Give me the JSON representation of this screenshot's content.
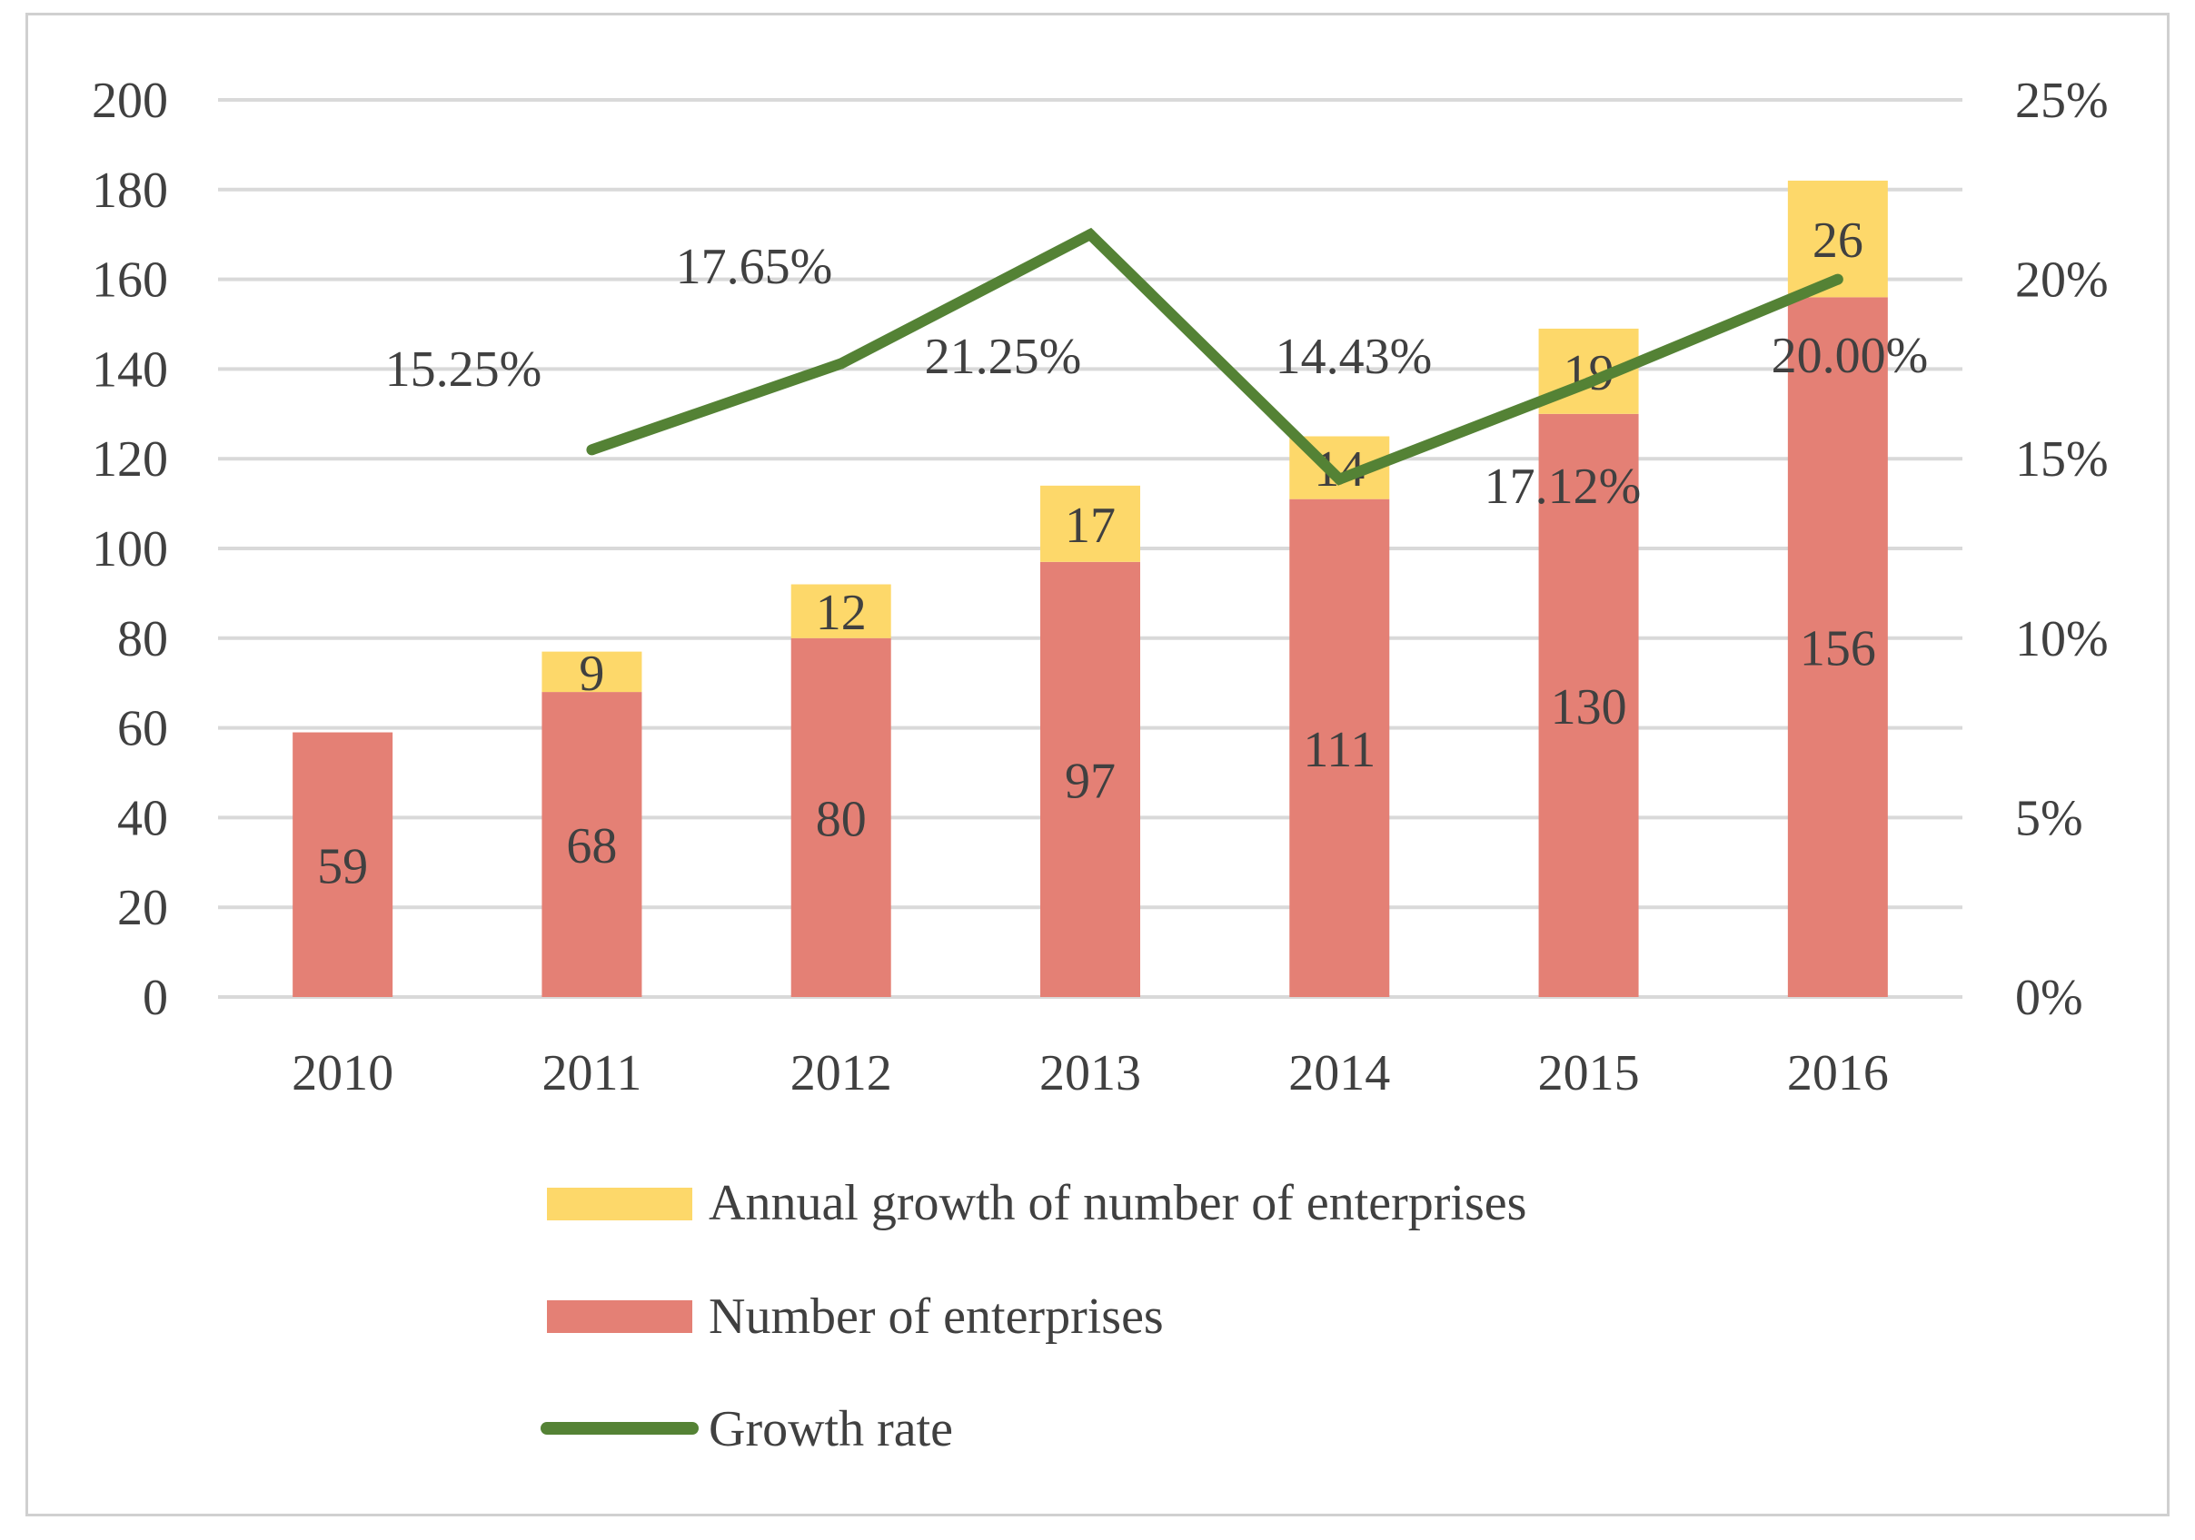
{
  "chart_data": {
    "type": "bar",
    "stacked": true,
    "categories": [
      "2010",
      "2011",
      "2012",
      "2013",
      "2014",
      "2015",
      "2016"
    ],
    "series": [
      {
        "name": "Number of enterprises",
        "type": "bar",
        "axis": "left",
        "color": "#e48075",
        "values": [
          59,
          68,
          80,
          97,
          111,
          130,
          156
        ],
        "labels": [
          "59",
          "68",
          "80",
          "97",
          "111",
          "130",
          "156"
        ]
      },
      {
        "name": "Annual growth of number of enterprises",
        "type": "bar",
        "axis": "left",
        "color": "#fdd86a",
        "values": [
          null,
          9,
          12,
          17,
          14,
          19,
          26
        ],
        "labels": [
          "",
          "9",
          "12",
          "17",
          "14",
          "19",
          "26"
        ]
      },
      {
        "name": "Growth rate",
        "type": "line",
        "axis": "right",
        "color": "#548235",
        "values": [
          null,
          0.1525,
          0.1765,
          0.2125,
          0.1443,
          0.1712,
          0.2
        ],
        "labels": [
          "",
          "15.25%",
          "17.65%",
          "21.25%",
          "14.43%",
          "17.12%",
          "20.00%"
        ]
      }
    ],
    "y_left": {
      "min": 0,
      "max": 200,
      "step": 20,
      "ticks": [
        "0",
        "20",
        "40",
        "60",
        "80",
        "100",
        "120",
        "140",
        "160",
        "180",
        "200"
      ]
    },
    "y_right": {
      "min": 0,
      "max": 0.25,
      "step": 0.05,
      "ticks": [
        "0%",
        "5%",
        "10%",
        "15%",
        "20%",
        "25%"
      ]
    },
    "grid": true,
    "legend": {
      "position": "bottom",
      "order": [
        "Annual growth of number of enterprises",
        "Number of enterprises",
        "Growth rate"
      ]
    }
  }
}
